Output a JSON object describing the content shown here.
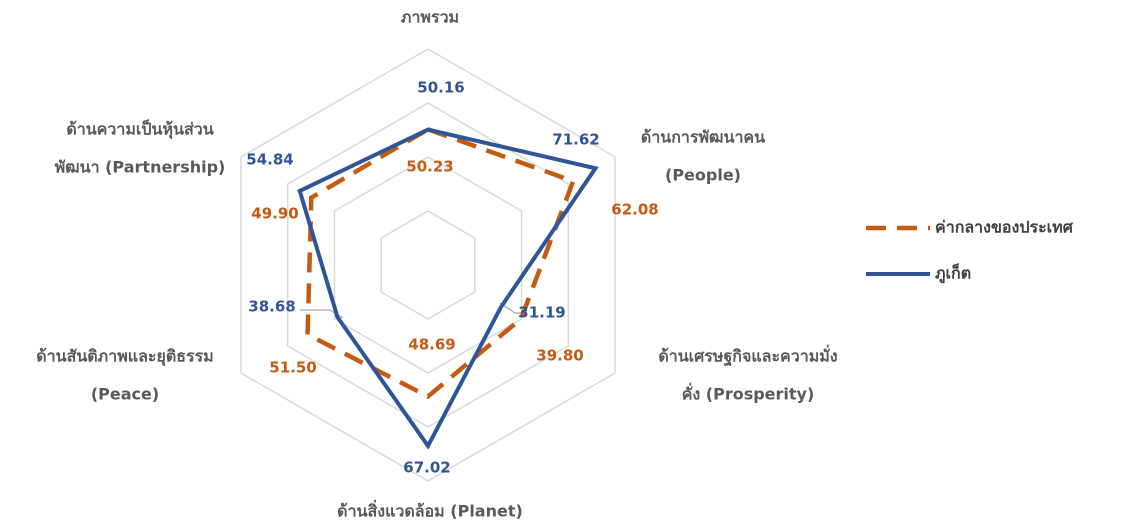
{
  "chart_data": {
    "type": "radar",
    "categories": [
      [
        "ภาพรวม"
      ],
      [
        "ด้านการพัฒนาคน",
        "(People)"
      ],
      [
        "ด้านเศรษฐกิจและความมั่ง",
        "คั่ง (Prosperity)"
      ],
      [
        "ด้านสิ่งแวดล้อม (Planet)"
      ],
      [
        "ด้านสันติภาพและยุติธรรม",
        "(Peace)"
      ],
      [
        "ด้านความเป็นหุ้นส่วน",
        "พัฒนา (Partnership)"
      ]
    ],
    "series": [
      {
        "name": "ค่ากลางของประเทศ",
        "color": "#c55a11",
        "dashed": true,
        "values": [
          50.23,
          62.08,
          39.8,
          48.69,
          51.5,
          49.9
        ],
        "value_labels": [
          "50.23",
          "62.08",
          "39.80",
          "48.69",
          "51.50",
          "49.90"
        ]
      },
      {
        "name": "ภูเก็ต",
        "color": "#2f5597",
        "dashed": false,
        "values": [
          50.16,
          71.62,
          31.19,
          67.02,
          38.68,
          54.84
        ],
        "value_labels": [
          "50.16",
          "71.62",
          "31.19",
          "67.02",
          "38.68",
          "54.84"
        ]
      }
    ],
    "rlim": [
      0,
      80
    ],
    "rticks": [
      20,
      40,
      60,
      80
    ],
    "grid": true,
    "legend": "right"
  }
}
